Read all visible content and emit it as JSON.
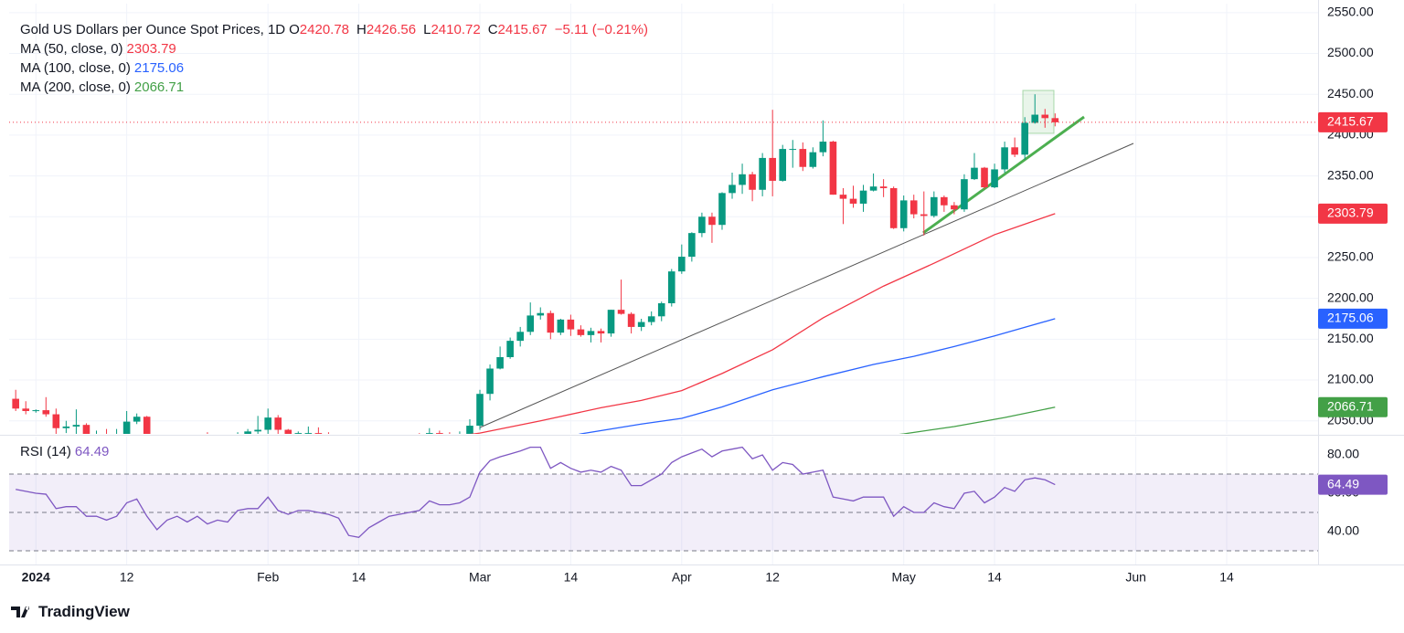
{
  "chart_data": {
    "type": "candlestick",
    "title": "Gold US Dollars per Ounce Spot Prices, 1D",
    "ohlc_letters": [
      "O",
      "H",
      "L",
      "C"
    ],
    "change_text": "−5.11 (−0.21%)",
    "up_color": "#089981",
    "down_color": "#f23645",
    "x": [
      -2,
      -1,
      0,
      1,
      2,
      3,
      4,
      5,
      6,
      7,
      8,
      9,
      10,
      11,
      12,
      13,
      14,
      15,
      16,
      17,
      18,
      19,
      20,
      21,
      22,
      23,
      24,
      25,
      26,
      27,
      28,
      29,
      30,
      31,
      32,
      33,
      34,
      35,
      36,
      37,
      38,
      39,
      40,
      41,
      42,
      43,
      44,
      45,
      46,
      47,
      48,
      49,
      50,
      51,
      52,
      53,
      54,
      55,
      56,
      57,
      58,
      59,
      60,
      61,
      62,
      63,
      64,
      65,
      66,
      67,
      68,
      69,
      70,
      71,
      72,
      73,
      74,
      75,
      76,
      77,
      78,
      79,
      80,
      81,
      82,
      83,
      84,
      85,
      86,
      87,
      88,
      89,
      90,
      91,
      92,
      93,
      94,
      95,
      96,
      97,
      98,
      99,
      100,
      101
    ],
    "open": [
      2077,
      2065,
      2062,
      2063,
      2058,
      2041,
      2043,
      2045,
      2027,
      2029,
      2024,
      2029,
      2049,
      2055,
      2028,
      2006,
      2023,
      2029,
      2021,
      2029,
      2014,
      2020,
      2018,
      2033,
      2037,
      2039,
      2054,
      2039,
      2025,
      2035,
      2035,
      2034,
      2024,
      2020,
      1992,
      1992,
      2004,
      2013,
      2018,
      2024,
      2025,
      2024,
      2035,
      2031,
      2029,
      2034,
      2044,
      2083,
      2114,
      2128,
      2148,
      2159,
      2179,
      2182,
      2158,
      2174,
      2162,
      2155,
      2160,
      2157,
      2186,
      2181,
      2165,
      2171,
      2178,
      2194,
      2233,
      2251,
      2280,
      2300,
      2290,
      2329,
      2339,
      2352,
      2333,
      2372,
      2344,
      2383,
      2383,
      2361,
      2379,
      2392,
      2327,
      2322,
      2316,
      2332,
      2337,
      2335,
      2286,
      2320,
      2303,
      2301,
      2324,
      2314,
      2309,
      2346,
      2360,
      2336,
      2358,
      2385,
      2376,
      2415,
      2425,
      2420.78
    ],
    "high": [
      2088,
      2074,
      2064,
      2079,
      2065,
      2050,
      2064,
      2047,
      2038,
      2040,
      2040,
      2062,
      2059,
      2056,
      2031,
      2025,
      2034,
      2031,
      2032,
      2036,
      2024,
      2025,
      2036,
      2040,
      2056,
      2065,
      2057,
      2040,
      2037,
      2043,
      2042,
      2036,
      2028,
      2020,
      1996,
      2007,
      2016,
      2021,
      2031,
      2032,
      2035,
      2041,
      2038,
      2036,
      2037,
      2052,
      2088,
      2119,
      2141,
      2152,
      2165,
      2195,
      2189,
      2185,
      2175,
      2180,
      2167,
      2164,
      2163,
      2186,
      2223,
      2183,
      2175,
      2184,
      2196,
      2236,
      2266,
      2281,
      2305,
      2305,
      2330,
      2354,
      2365,
      2355,
      2378,
      2431,
      2388,
      2394,
      2391,
      2385,
      2418,
      2393,
      2335,
      2338,
      2339,
      2353,
      2346,
      2337,
      2326,
      2327,
      2331,
      2331,
      2326,
      2318,
      2352,
      2378,
      2361,
      2365,
      2392,
      2397,
      2422,
      2450,
      2432,
      2426.56
    ],
    "low": [
      2062,
      2058,
      2060,
      2055,
      2031,
      2035,
      2024,
      2016,
      2022,
      2020,
      2013,
      2028,
      2046,
      2025,
      2002,
      2004,
      2022,
      2016,
      2010,
      2011,
      2009,
      2015,
      2016,
      2028,
      2030,
      2034,
      2030,
      2014,
      2019,
      2030,
      2028,
      2019,
      2011,
      1984,
      1984,
      1985,
      1996,
      2011,
      2015,
      2020,
      2020,
      2022,
      2025,
      2025,
      2024,
      2030,
      2039,
      2075,
      2113,
      2126,
      2141,
      2155,
      2174,
      2150,
      2155,
      2154,
      2153,
      2146,
      2146,
      2153,
      2180,
      2157,
      2160,
      2167,
      2172,
      2190,
      2230,
      2245,
      2275,
      2268,
      2284,
      2322,
      2328,
      2319,
      2325,
      2325,
      2343,
      2360,
      2356,
      2359,
      2374,
      2327,
      2291,
      2311,
      2306,
      2331,
      2324,
      2285,
      2282,
      2298,
      2277,
      2299,
      2306,
      2303,
      2306,
      2345,
      2334,
      2335,
      2354,
      2373,
      2370,
      2414,
      2409,
      2410.72
    ],
    "close": [
      2065,
      2062,
      2063,
      2058,
      2041,
      2043,
      2045,
      2027,
      2029,
      2024,
      2029,
      2049,
      2055,
      2028,
      2006,
      2023,
      2029,
      2021,
      2029,
      2014,
      2020,
      2018,
      2033,
      2037,
      2039,
      2054,
      2039,
      2025,
      2035,
      2035,
      2034,
      2024,
      2020,
      1992,
      1992,
      2004,
      2013,
      2018,
      2024,
      2025,
      2024,
      2035,
      2031,
      2029,
      2034,
      2044,
      2083,
      2114,
      2128,
      2148,
      2159,
      2179,
      2182,
      2158,
      2174,
      2162,
      2155,
      2160,
      2157,
      2186,
      2181,
      2165,
      2171,
      2178,
      2194,
      2233,
      2251,
      2280,
      2300,
      2290,
      2329,
      2339,
      2352,
      2333,
      2372,
      2344,
      2383,
      2383,
      2361,
      2379,
      2392,
      2327,
      2322,
      2316,
      2332,
      2337,
      2335,
      2286,
      2320,
      2303,
      2301,
      2324,
      2314,
      2309,
      2346,
      2360,
      2336,
      2358,
      2385,
      2376,
      2415,
      2425,
      2420.78,
      2415.67
    ],
    "series": [
      {
        "name": "MA (50, close, 0)",
        "color": "#f23645",
        "x": [
          40,
          44,
          50,
          56,
          60,
          64,
          68,
          73,
          78,
          84,
          89,
          95,
          101
        ],
        "values": [
          2028,
          2035,
          2050,
          2066,
          2075,
          2087,
          2108,
          2137,
          2176,
          2215,
          2243,
          2278,
          2303.79
        ]
      },
      {
        "name": "MA (100, close, 0)",
        "color": "#2962ff",
        "x": [
          52,
          54,
          60,
          64,
          68,
          73,
          78,
          83,
          87,
          91,
          95,
          101
        ],
        "values": [
          2028,
          2034,
          2046,
          2053,
          2067,
          2088,
          2104,
          2119,
          2129,
          2141,
          2154,
          2175.06
        ]
      },
      {
        "name": "MA (200, close, 0)",
        "color": "#43a047",
        "x": [
          84,
          86,
          91,
          96,
          101
        ],
        "values": [
          2031,
          2034,
          2043,
          2054,
          2066.71
        ]
      }
    ],
    "xlim": [
      -2.65,
      127.06
    ],
    "xticks": [
      {
        "value": 0,
        "label": "2024"
      },
      {
        "value": 9,
        "label": "12"
      },
      {
        "value": 23,
        "label": "Feb"
      },
      {
        "value": 32,
        "label": "14"
      },
      {
        "value": 44,
        "label": "Mar"
      },
      {
        "value": 53,
        "label": "14"
      },
      {
        "value": 64,
        "label": "Apr"
      },
      {
        "value": 73,
        "label": "12"
      },
      {
        "value": 86,
        "label": "May"
      },
      {
        "value": 95,
        "label": "14"
      },
      {
        "value": 109,
        "label": "Jun"
      },
      {
        "value": 118,
        "label": "14"
      }
    ],
    "ylim": [
      2034,
      2561
    ],
    "yticks": [
      {
        "value": 2050,
        "label": "2050.00"
      },
      {
        "value": 2100,
        "label": "2100.00"
      },
      {
        "value": 2150,
        "label": "2150.00"
      },
      {
        "value": 2200,
        "label": "2200.00"
      },
      {
        "value": 2250,
        "label": "2250.00"
      },
      {
        "value": 2300,
        "label": "2300.00"
      },
      {
        "value": 2350,
        "label": "2350.00"
      },
      {
        "value": 2400,
        "label": "2400.00"
      },
      {
        "value": 2450,
        "label": "2450.00"
      },
      {
        "value": 2500,
        "label": "2500.00"
      },
      {
        "value": 2550,
        "label": "2550.00"
      }
    ],
    "grid": true,
    "rsi": {
      "type": "line",
      "title": "RSI (14)",
      "color": "#7e57c2",
      "values": [
        62,
        61,
        60,
        59.5,
        52,
        53,
        53,
        48,
        48,
        46,
        48,
        55,
        57,
        48,
        41,
        46,
        48,
        45,
        48,
        44,
        46,
        45,
        51,
        52,
        52,
        58,
        51,
        49,
        51,
        51,
        50,
        49,
        47,
        38,
        37,
        42,
        45,
        48,
        49,
        50,
        51,
        56,
        54,
        54,
        55,
        58,
        71,
        77,
        79,
        80.5,
        82,
        84,
        84,
        73,
        76,
        73,
        71,
        72,
        71,
        74,
        72,
        64,
        64,
        67,
        70,
        76,
        79,
        81,
        83,
        79,
        82,
        83,
        84,
        78,
        80,
        72,
        76,
        75,
        70,
        71,
        72,
        58,
        57,
        56,
        58,
        58,
        58,
        48,
        53,
        50,
        50,
        55,
        53,
        52,
        60,
        61,
        55,
        58,
        63,
        61,
        67,
        68,
        67,
        64.49
      ],
      "ylim": [
        22.86,
        89.52
      ],
      "yticks": [
        {
          "value": 40,
          "label": "40.00"
        },
        {
          "value": 60,
          "label": "60.00"
        },
        {
          "value": 80,
          "label": "80.00"
        }
      ],
      "levels": [
        70,
        50,
        30
      ]
    }
  },
  "brand": "TradingView"
}
